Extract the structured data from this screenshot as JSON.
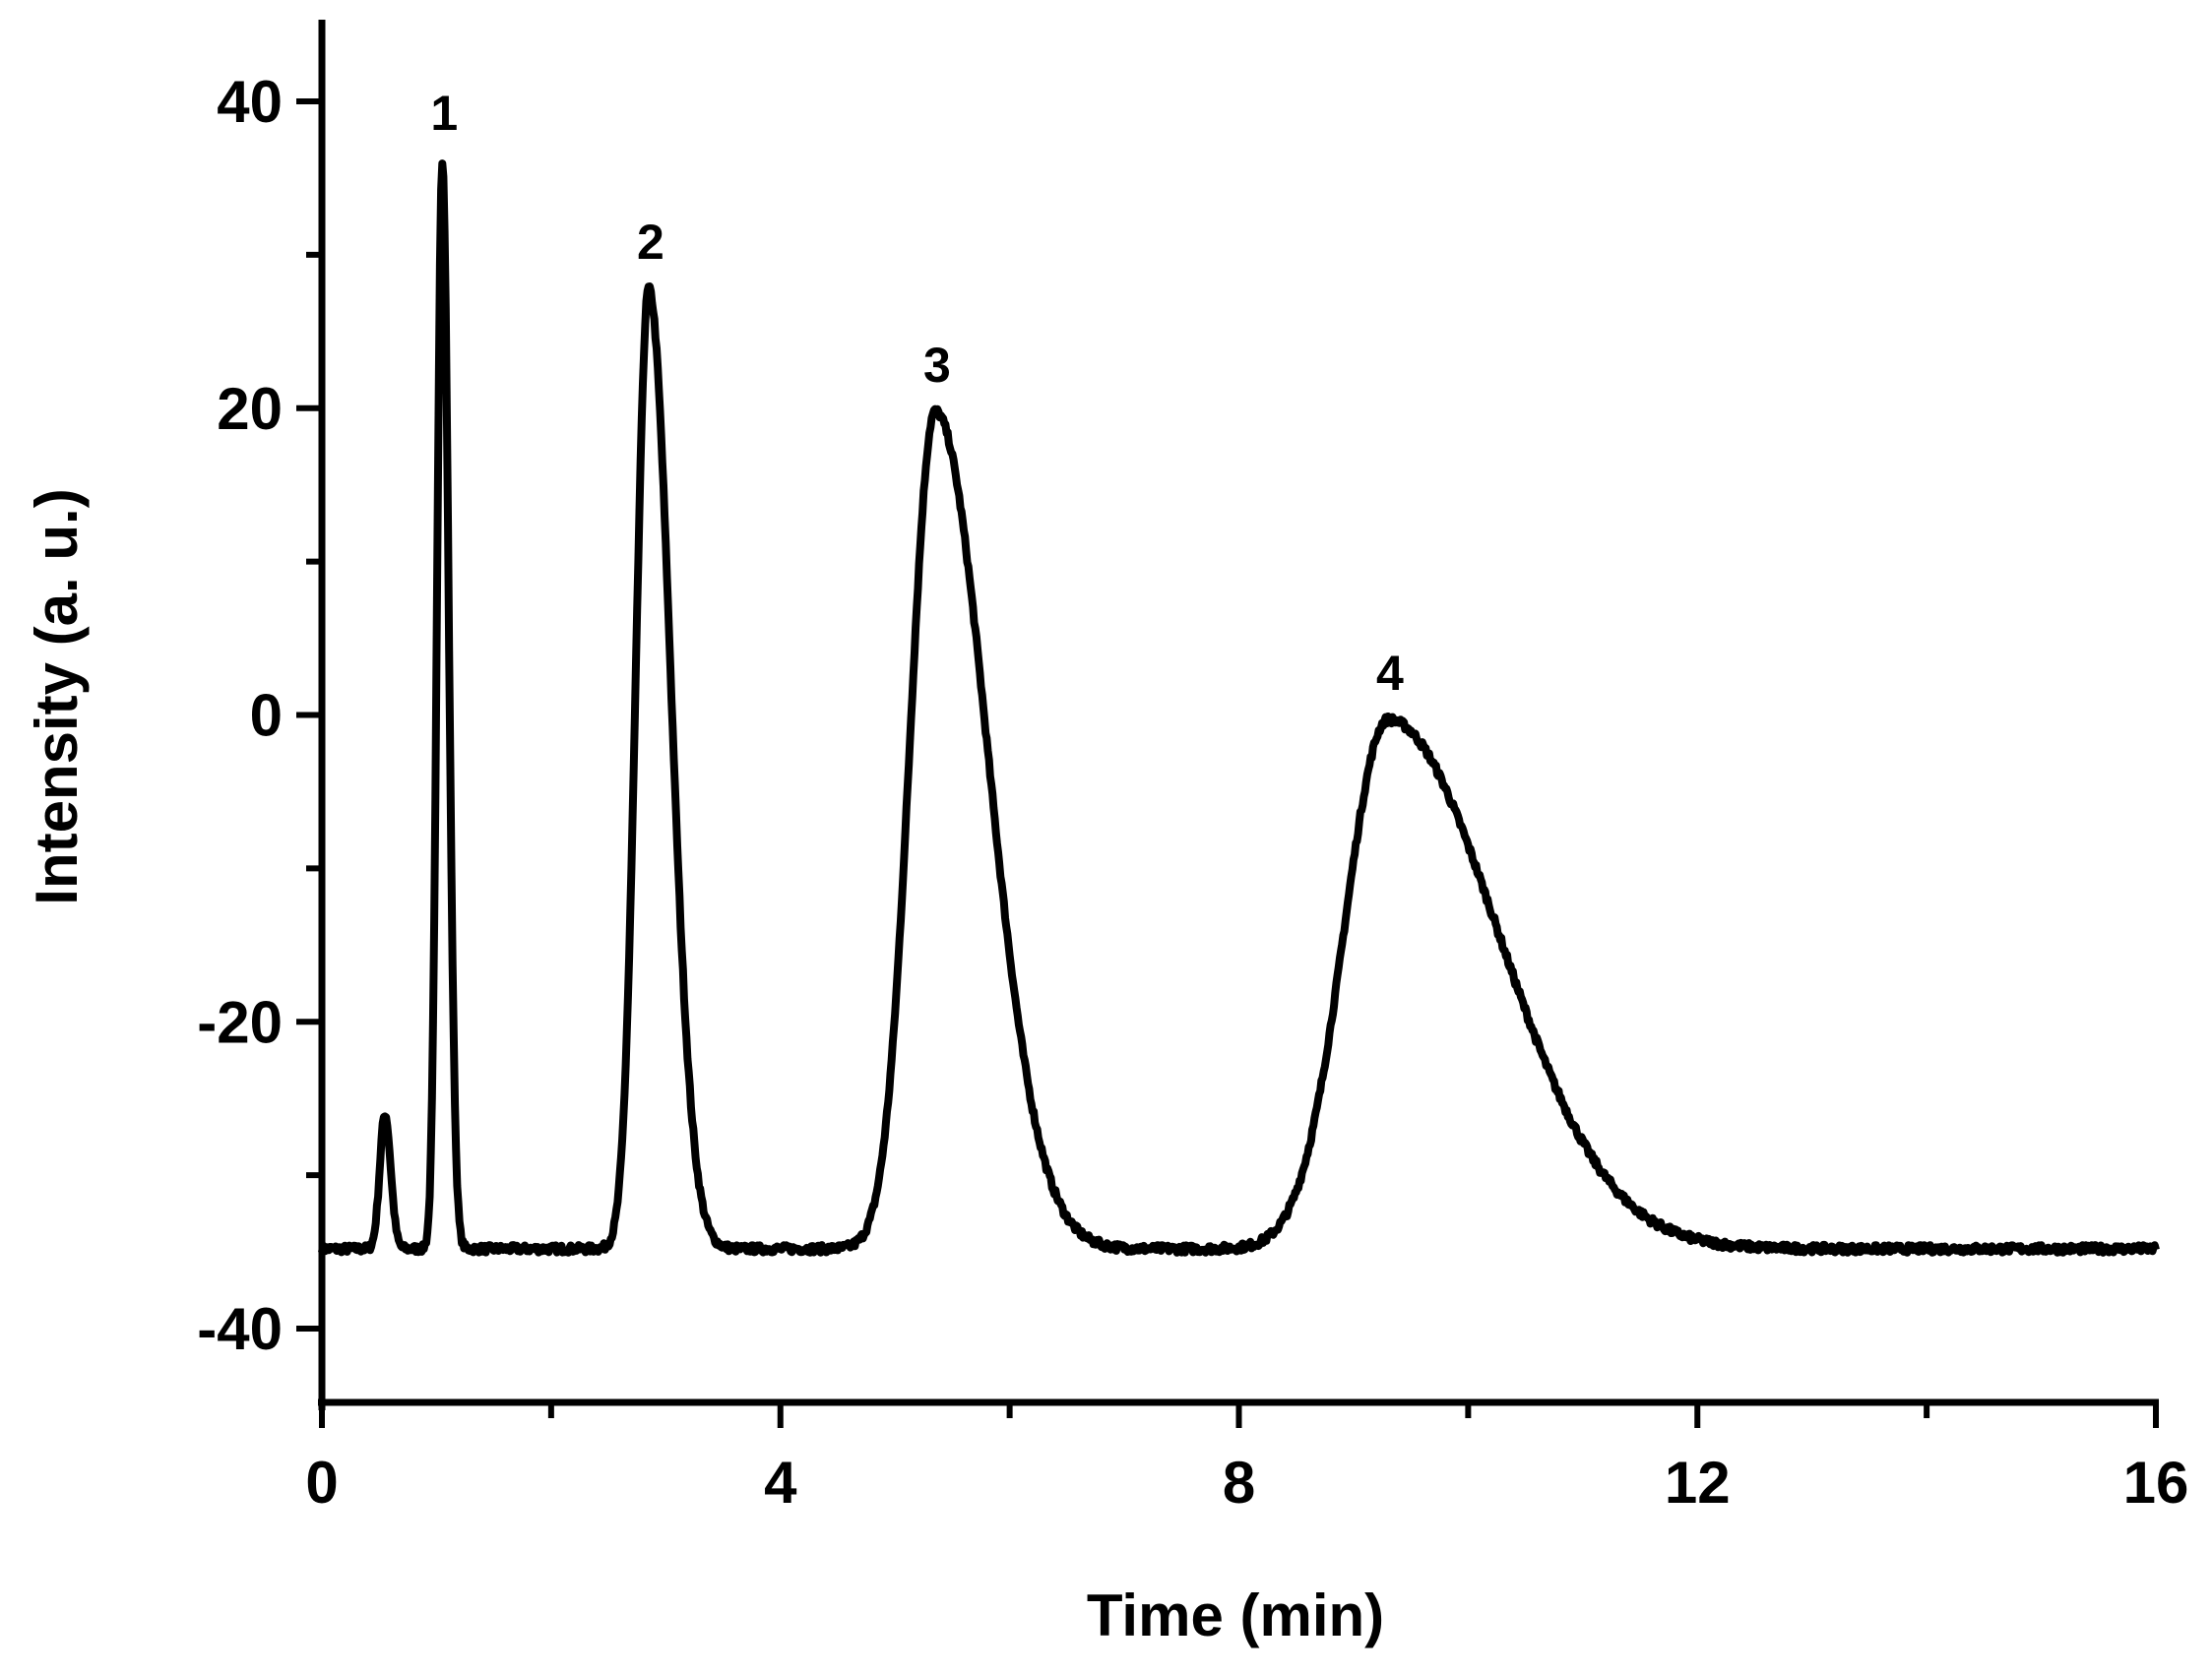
{
  "chart_data": {
    "type": "line",
    "title": "",
    "xlabel": "Time (min)",
    "ylabel": "Intensity (a. u.)",
    "xlim": [
      0,
      16
    ],
    "ylim": [
      -45,
      45
    ],
    "xticks": [
      0,
      4,
      8,
      12,
      16
    ],
    "yticks": [
      -40,
      -20,
      0,
      20,
      40
    ],
    "grid": false,
    "legend": "none",
    "line_color": "#000000",
    "series": [
      {
        "baseline": -34.8,
        "peaks": [
          {
            "label": "",
            "time": 0.55,
            "height": -26.0,
            "sigma_left": 0.045,
            "sigma_right": 0.05
          },
          {
            "label": "1",
            "time": 1.05,
            "height": 36.2,
            "sigma_left": 0.045,
            "sigma_right": 0.055
          },
          {
            "label": "2",
            "time": 2.85,
            "height": 27.8,
            "sigma_left": 0.11,
            "sigma_right": 0.19
          },
          {
            "label": "3",
            "time": 5.35,
            "height": 19.8,
            "sigma_left": 0.22,
            "sigma_right": 0.45
          },
          {
            "label": "4",
            "time": 9.3,
            "height": -0.3,
            "sigma_left": 0.38,
            "sigma_right": 0.95
          }
        ]
      }
    ],
    "peak_labels": [
      "1",
      "2",
      "3",
      "4"
    ]
  }
}
